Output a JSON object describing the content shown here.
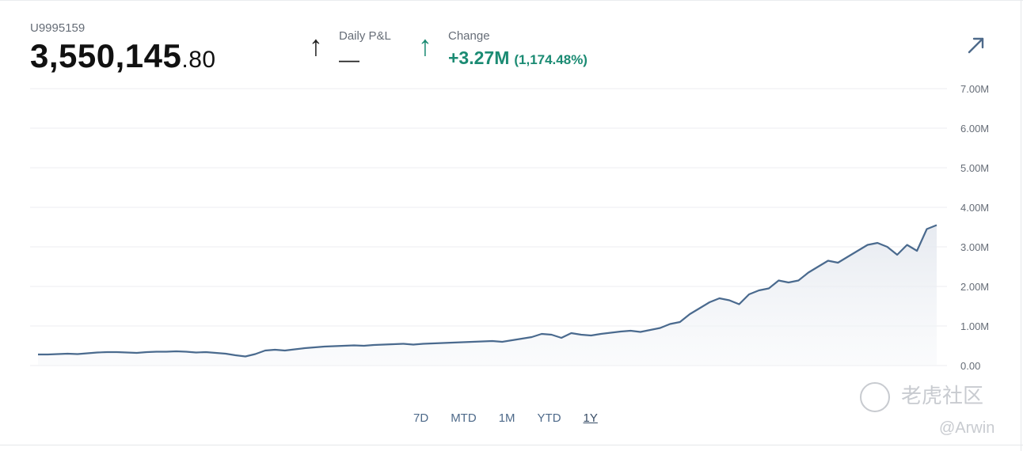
{
  "account": {
    "id": "U9995159",
    "balance_main": "3,550,145",
    "balance_cents": ".80"
  },
  "daily_pnl": {
    "label": "Daily P&L",
    "value": "—",
    "arrow": "↑"
  },
  "change": {
    "label": "Change",
    "value": "+3.27M",
    "percent": "(1,174.48%)",
    "arrow": "↑",
    "color": "#1b8b73"
  },
  "ranges": [
    "7D",
    "MTD",
    "1M",
    "YTD",
    "1Y"
  ],
  "active_range": "1Y",
  "watermark": {
    "brand": "老虎社区",
    "user": "@Arwin"
  },
  "chart_data": {
    "type": "area",
    "ylim": [
      0,
      7000000
    ],
    "yticks": [
      "0.00",
      "1.00M",
      "2.00M",
      "3.00M",
      "4.00M",
      "5.00M",
      "6.00M",
      "7.00M"
    ],
    "grid": true,
    "line_color": "#4a6a8e",
    "values": [
      280000,
      280000,
      290000,
      300000,
      290000,
      310000,
      330000,
      340000,
      340000,
      330000,
      320000,
      340000,
      350000,
      350000,
      360000,
      350000,
      330000,
      340000,
      320000,
      300000,
      260000,
      230000,
      290000,
      380000,
      400000,
      380000,
      410000,
      440000,
      460000,
      480000,
      490000,
      500000,
      510000,
      500000,
      520000,
      530000,
      540000,
      550000,
      530000,
      550000,
      560000,
      570000,
      580000,
      590000,
      600000,
      610000,
      620000,
      600000,
      640000,
      680000,
      720000,
      800000,
      780000,
      700000,
      820000,
      780000,
      760000,
      800000,
      830000,
      860000,
      880000,
      850000,
      900000,
      950000,
      1050000,
      1100000,
      1300000,
      1450000,
      1600000,
      1700000,
      1650000,
      1550000,
      1800000,
      1900000,
      1950000,
      2150000,
      2100000,
      2150000,
      2350000,
      2500000,
      2650000,
      2600000,
      2750000,
      2900000,
      3050000,
      3100000,
      3000000,
      2800000,
      3050000,
      2900000,
      3450000,
      3550000
    ]
  }
}
